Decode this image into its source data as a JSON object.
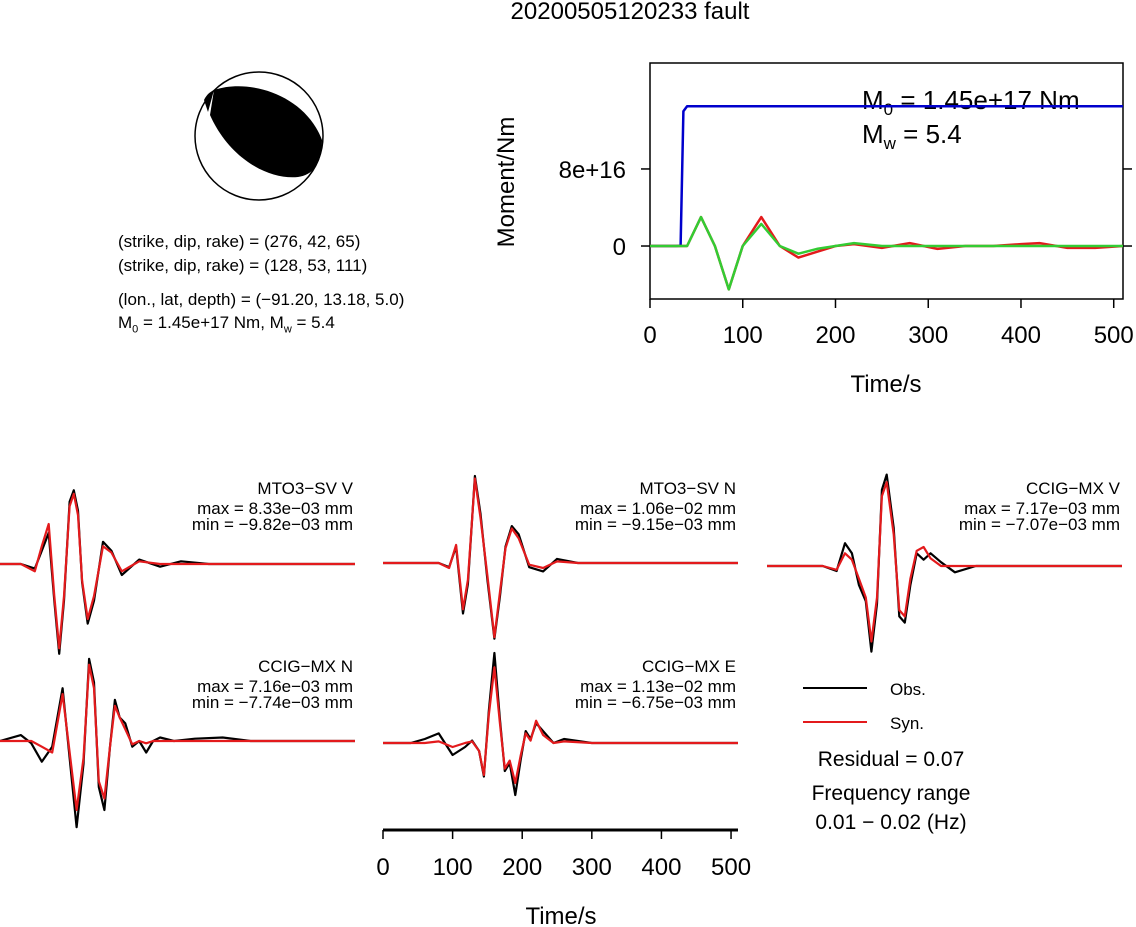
{
  "title": "20200505120233 fault",
  "params": {
    "line1": "(strike, dip, rake) = (276, 42, 65)",
    "line2": "(strike, dip, rake) = (128, 53, 111)",
    "line3": "(lon., lat, depth) = (−91.20, 13.18, 5.0)",
    "m0_sym": "M",
    "m0_sub": "0",
    "m0_text": " = 1.45e+17 Nm, M",
    "mw_sub": "w",
    "mw_text": " = 5.4"
  },
  "moment": {
    "m0_label_sym": "M",
    "m0_label_sub": "0",
    "m0_label_text": " = 1.45e+17 Nm",
    "mw_label_sym": "M",
    "mw_label_sub": "w",
    "mw_label_text": " = 5.4"
  },
  "legend": {
    "obs": "Obs.",
    "syn": "Syn.",
    "residual": "Residual = 0.07",
    "freq_title": "Frequency range",
    "freq_range": "0.01 − 0.02 (Hz)"
  },
  "colors": {
    "obs": "#000000",
    "syn": "#e31a1c",
    "source": "#0000cc",
    "green": "#33cc33"
  },
  "chart_data": [
    {
      "type": "line",
      "title": "",
      "xlabel": "Time/s",
      "ylabel": "Moment/Nm",
      "xlim": [
        0,
        510
      ],
      "ylim": [
        -5.5e+16,
        1.9e+17
      ],
      "xticks": [
        0,
        100,
        200,
        300,
        400,
        500
      ],
      "yticks": [
        0,
        8e+16
      ],
      "ytick_labels": [
        "0",
        "8e+16"
      ],
      "series": [
        {
          "color": "#0000cc",
          "x": [
            0,
            28,
            33,
            36,
            40,
            510
          ],
          "y": [
            0,
            0,
            200000000000000.0,
            1.4e+17,
            1.45e+17,
            1.45e+17
          ]
        },
        {
          "color": "#e31a1c",
          "x": [
            0,
            25,
            40,
            55,
            70,
            85,
            100,
            120,
            140,
            160,
            180,
            200,
            220,
            250,
            280,
            310,
            340,
            370,
            400,
            420,
            450,
            480,
            510
          ],
          "y": [
            0,
            0,
            0,
            3e+16,
            0,
            -4.5e+16,
            0,
            3e+16,
            0,
            -1.2e+16,
            -6000000000000000.0,
            0,
            2000000000000000.0,
            -2000000000000000.0,
            3000000000000000.0,
            -3000000000000000.0,
            0,
            0,
            2000000000000000.0,
            3000000000000000.0,
            -2000000000000000.0,
            -2000000000000000.0,
            0
          ]
        },
        {
          "color": "#33cc33",
          "x": [
            0,
            25,
            40,
            55,
            70,
            85,
            100,
            120,
            140,
            160,
            180,
            200,
            220,
            250,
            280,
            310,
            340,
            370,
            400,
            420,
            450,
            480,
            510
          ],
          "y": [
            0,
            0,
            0,
            3e+16,
            0,
            -4.5e+16,
            0,
            2.3e+16,
            0,
            -8000000000000000.0,
            -3000000000000000.0,
            0,
            3000000000000000.0,
            0,
            0,
            0,
            0,
            0,
            0,
            0,
            0,
            0,
            0
          ]
        }
      ]
    },
    {
      "type": "line",
      "title": "MTO3−SV V",
      "max_label": "max = 8.33e−03 mm",
      "min_label": "min = −9.82e−03 mm",
      "xlim": [
        0,
        510
      ],
      "ylim": [
        -0.00982,
        0.00833
      ],
      "series": [
        {
          "name": "Obs.",
          "x": [
            0,
            30,
            50,
            60,
            70,
            78,
            85,
            92,
            100,
            106,
            112,
            118,
            126,
            135,
            148,
            160,
            175,
            200,
            230,
            260,
            300,
            350,
            400,
            510
          ],
          "y": [
            0,
            0,
            -0.0005,
            0.0015,
            0.0035,
            -0.004,
            -0.0098,
            -0.004,
            0.007,
            0.0083,
            0.006,
            -0.002,
            -0.0065,
            -0.004,
            0.0025,
            0.0015,
            -0.0012,
            0.0005,
            -0.0003,
            0.0003,
            0,
            0,
            0,
            0
          ]
        },
        {
          "name": "Syn.",
          "x": [
            0,
            30,
            50,
            60,
            70,
            78,
            85,
            92,
            100,
            106,
            112,
            118,
            126,
            135,
            148,
            160,
            175,
            200,
            230,
            260,
            300,
            350,
            400,
            510
          ],
          "y": [
            0,
            0,
            -0.0008,
            0.002,
            0.0045,
            -0.0035,
            -0.0092,
            -0.0035,
            0.0065,
            0.0079,
            0.0055,
            -0.0018,
            -0.006,
            -0.0035,
            0.002,
            0.0013,
            -0.0008,
            0.0003,
            0,
            0,
            0,
            0,
            0,
            0
          ]
        }
      ]
    },
    {
      "type": "line",
      "title": "MTO3−SV N",
      "max_label": "max = 1.06e−02 mm",
      "min_label": "min = −9.15e−03 mm",
      "xlim": [
        0,
        510
      ],
      "ylim": [
        -0.00915,
        0.0106
      ],
      "series": [
        {
          "name": "Obs.",
          "x": [
            0,
            60,
            80,
            95,
            105,
            115,
            122,
            132,
            140,
            150,
            160,
            168,
            176,
            185,
            195,
            210,
            230,
            250,
            280,
            330,
            510
          ],
          "y": [
            0,
            0,
            0,
            -0.0005,
            0.002,
            -0.006,
            -0.0025,
            0.0106,
            0.006,
            -0.002,
            -0.009,
            -0.004,
            0.002,
            0.0045,
            0.0035,
            -0.0005,
            -0.001,
            0.0005,
            0,
            0,
            0
          ]
        },
        {
          "name": "Syn.",
          "x": [
            0,
            60,
            80,
            95,
            105,
            115,
            122,
            132,
            140,
            150,
            160,
            168,
            176,
            185,
            195,
            210,
            230,
            250,
            280,
            330,
            510
          ],
          "y": [
            0,
            0,
            0,
            -0.0006,
            0.0022,
            -0.0055,
            -0.002,
            0.0103,
            0.0055,
            -0.0015,
            -0.0088,
            -0.0035,
            0.0018,
            0.0042,
            0.003,
            -0.0002,
            -0.0006,
            0.0002,
            0,
            0,
            0
          ]
        }
      ]
    },
    {
      "type": "line",
      "title": "CCIG−MX V",
      "max_label": "max = 7.17e−03 mm",
      "min_label": "min = −7.07e−03 mm",
      "xlim": [
        0,
        510
      ],
      "ylim": [
        -0.00707,
        0.00717
      ],
      "series": [
        {
          "name": "Obs.",
          "x": [
            0,
            80,
            100,
            112,
            122,
            132,
            142,
            150,
            158,
            165,
            172,
            182,
            190,
            198,
            206,
            215,
            225,
            235,
            250,
            270,
            300,
            350,
            510
          ],
          "y": [
            0,
            0,
            -0.0004,
            0.0018,
            0.001,
            -0.0015,
            -0.0028,
            -0.0068,
            -0.003,
            0.006,
            0.0072,
            0.003,
            -0.004,
            -0.0045,
            -0.0015,
            0.001,
            0.0005,
            0.001,
            0.0003,
            -0.0005,
            0,
            0,
            0
          ]
        },
        {
          "name": "Syn.",
          "x": [
            0,
            80,
            100,
            112,
            122,
            132,
            142,
            150,
            158,
            165,
            172,
            182,
            190,
            198,
            206,
            215,
            225,
            235,
            250,
            270,
            300,
            350,
            510
          ],
          "y": [
            0,
            0,
            -0.0003,
            0.001,
            0.0005,
            -0.001,
            -0.0025,
            -0.006,
            -0.0025,
            0.0055,
            0.0066,
            0.0025,
            -0.0035,
            -0.004,
            -0.001,
            0.0012,
            0.0015,
            0.0006,
            0,
            0,
            0,
            0,
            0
          ]
        }
      ]
    },
    {
      "type": "line",
      "title": "CCIG−MX N",
      "max_label": "max = 7.16e−03 mm",
      "min_label": "min = −7.74e−03 mm",
      "xlim": [
        0,
        510
      ],
      "ylim": [
        -0.00774,
        0.00716
      ],
      "series": [
        {
          "name": "Obs.",
          "x": [
            0,
            30,
            45,
            60,
            75,
            90,
            110,
            120,
            128,
            135,
            142,
            150,
            158,
            165,
            172,
            180,
            190,
            200,
            210,
            220,
            230,
            250,
            280,
            320,
            360,
            400,
            510
          ],
          "y": [
            0,
            0.0005,
            -0.0002,
            -0.0018,
            -0.0005,
            0.0045,
            -0.0075,
            -0.002,
            0.007,
            0.005,
            -0.004,
            -0.006,
            -0.0005,
            0.0035,
            0.002,
            0.0015,
            -0.0005,
            0,
            -0.001,
            0,
            0.0003,
            0,
            0.0002,
            0.0003,
            0,
            0,
            0
          ]
        },
        {
          "name": "Syn.",
          "x": [
            0,
            30,
            45,
            60,
            75,
            90,
            110,
            120,
            128,
            135,
            142,
            150,
            158,
            165,
            172,
            180,
            190,
            200,
            210,
            220,
            230,
            250,
            280,
            320,
            360,
            400,
            510
          ],
          "y": [
            0,
            0,
            0,
            -0.0005,
            -0.001,
            0.004,
            -0.006,
            -0.0015,
            0.0065,
            0.0045,
            -0.0035,
            -0.005,
            -0.0005,
            0.003,
            0.002,
            0.001,
            -0.0003,
            0,
            -0.0002,
            0,
            0,
            0,
            0,
            0,
            0,
            0,
            0
          ]
        }
      ]
    },
    {
      "type": "line",
      "title": "CCIG−MX E",
      "max_label": "max = 1.13e−02 mm",
      "min_label": "min = −6.75e−03 mm",
      "xlim": [
        0,
        510
      ],
      "ylim": [
        -0.00675,
        0.0113
      ],
      "series": [
        {
          "name": "Obs.",
          "x": [
            0,
            40,
            60,
            80,
            100,
            118,
            128,
            138,
            145,
            152,
            160,
            168,
            175,
            182,
            190,
            198,
            205,
            212,
            220,
            230,
            245,
            260,
            300,
            350,
            510
          ],
          "y": [
            0,
            0,
            0.0005,
            0.0012,
            -0.0015,
            -0.0005,
            0.0003,
            -0.001,
            -0.0042,
            0.004,
            0.0113,
            0.003,
            -0.0035,
            -0.0025,
            -0.0065,
            -0.002,
            0.0015,
            0.0005,
            0.0025,
            0.0015,
            0,
            0.0005,
            0,
            0,
            0
          ]
        },
        {
          "name": "Syn.",
          "x": [
            0,
            40,
            60,
            80,
            100,
            118,
            128,
            138,
            145,
            152,
            160,
            168,
            175,
            182,
            190,
            198,
            205,
            212,
            220,
            230,
            245,
            260,
            300,
            350,
            510
          ],
          "y": [
            0,
            0,
            0,
            0.0002,
            -0.0005,
            0,
            0.0002,
            -0.001,
            -0.004,
            0.0035,
            0.0095,
            0.0025,
            -0.0032,
            -0.0022,
            -0.005,
            -0.0015,
            0.0012,
            0.0003,
            0.0028,
            0.001,
            0,
            0.0002,
            0,
            0,
            0
          ]
        }
      ]
    },
    {
      "type": "line",
      "title": "",
      "xlabel": "Time/s",
      "xlim": [
        0,
        510
      ],
      "xticks": [
        0,
        100,
        200,
        300,
        400,
        500
      ]
    }
  ]
}
